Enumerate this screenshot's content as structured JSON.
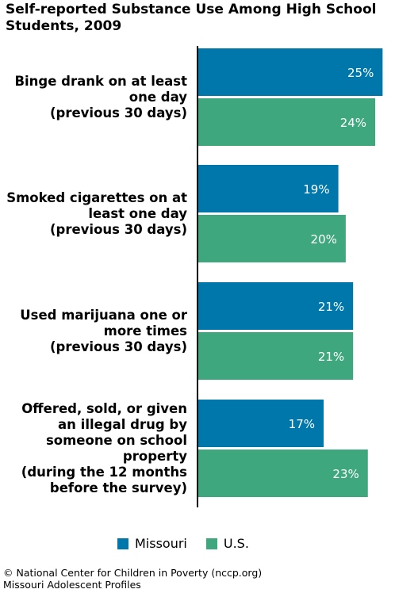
{
  "title": "Self-reported Substance Use Among High School Students, 2009",
  "colors": {
    "missouri": "#0077aa",
    "us": "#3fa77e",
    "axis": "#000000",
    "value_text": "#ffffff"
  },
  "chart_data": {
    "type": "bar",
    "orientation": "horizontal",
    "title": "Self-reported Substance Use Among High School Students, 2009",
    "categories": [
      "Binge drank on at least one day (previous 30 days)",
      "Smoked cigarettes on at least one day (previous 30 days)",
      "Used marijuana one or more times (previous 30 days)",
      "Offered, sold, or given an illegal drug by someone on school property (during the 12 months before the survey)"
    ],
    "category_lines": [
      [
        "Binge drank on at least",
        "one day",
        "(previous 30 days)"
      ],
      [
        "Smoked cigarettes on at",
        "least one day",
        "(previous 30 days)"
      ],
      [
        "Used marijuana one or",
        "more times",
        "(previous 30 days)"
      ],
      [
        "Offered, sold, or given",
        "an illegal drug by",
        "someone on school",
        "property",
        "(during the 12 months",
        "before the survey)"
      ]
    ],
    "series": [
      {
        "name": "Missouri",
        "values": [
          25,
          19,
          21,
          17
        ],
        "labels": [
          "25%",
          "19%",
          "21%",
          "17%"
        ]
      },
      {
        "name": "U.S.",
        "values": [
          24,
          20,
          21,
          23
        ],
        "labels": [
          "24%",
          "20%",
          "21%",
          "23%"
        ]
      }
    ],
    "xlim": [
      0,
      25.5
    ],
    "grid": false,
    "legend_position": "bottom"
  },
  "legend": {
    "missouri": "Missouri",
    "us": "U.S."
  },
  "footer": {
    "line1": "© National Center for Children in Poverty (nccp.org)",
    "line2": "Missouri Adolescent Profiles"
  }
}
